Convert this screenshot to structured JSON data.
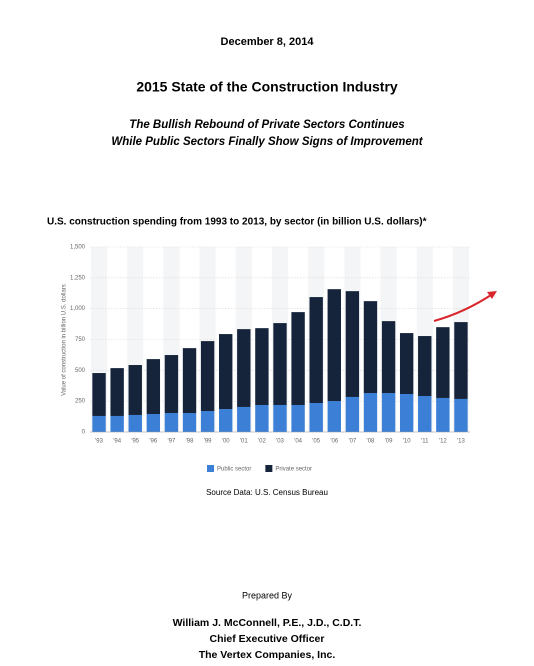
{
  "document": {
    "date": "December 8, 2014",
    "title": "2015 State of the Construction Industry",
    "subtitle": [
      "The Bullish Rebound of Private Sectors Continues",
      "While Public Sectors Finally Show Signs of Improvement"
    ],
    "source": "Source Data: U.S. Census Bureau",
    "prepared_label": "Prepared By",
    "author": [
      "William J. McConnell, P.E., J.D., C.D.T.",
      "Chief Executive Officer",
      "The Vertex Companies, Inc."
    ]
  },
  "chart_data": {
    "type": "stacked_bar",
    "title": "U.S. construction spending from 1993 to 2013, by sector (in billion U.S. dollars)*",
    "y_label": "Value of construction in billion U.S. dollars",
    "categories": [
      "'93",
      "'94",
      "'95",
      "'96",
      "'97",
      "'98",
      "'99",
      "'00",
      "'01",
      "'02",
      "'03",
      "'04",
      "'05",
      "'06",
      "'07",
      "'08",
      "'09",
      "'10",
      "'11",
      "'12",
      "'13"
    ],
    "series": [
      {
        "name": "Public sector",
        "color": "#3b7fd6",
        "values": [
          130,
          130,
          138,
          146,
          154,
          154,
          170,
          186,
          203,
          219,
          219,
          219,
          235,
          251,
          284,
          316,
          316,
          308,
          292,
          276,
          268
        ]
      },
      {
        "name": "Private sector",
        "color": "#15243a",
        "values": [
          348,
          388,
          405,
          445,
          470,
          526,
          567,
          608,
          631,
          623,
          664,
          753,
          859,
          907,
          858,
          745,
          583,
          494,
          486,
          574,
          623
        ]
      }
    ],
    "ylim": [
      0,
      1500
    ],
    "yticks": [
      0,
      250,
      500,
      750,
      {
        "value": 1000,
        "label": "1,000"
      },
      {
        "value": 1250,
        "label": "1,250"
      },
      {
        "value": 1500,
        "label": "1,500"
      }
    ],
    "grid": true,
    "legend": "bottom"
  }
}
